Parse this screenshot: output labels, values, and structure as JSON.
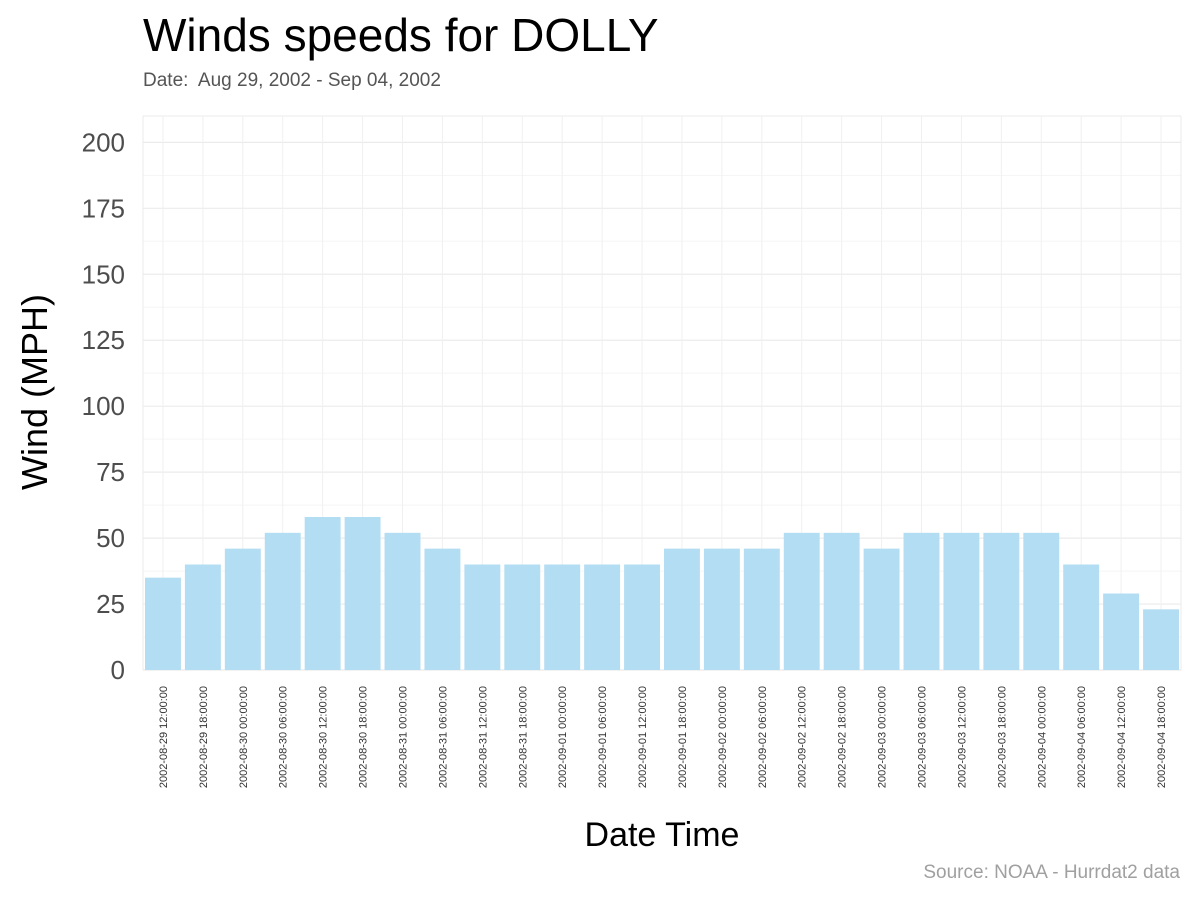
{
  "chart_data": {
    "type": "bar",
    "title": "Winds speeds for DOLLY",
    "subtitle": "Date:  Aug 29, 2002 - Sep 04, 2002",
    "caption": "Source: NOAA - Hurrdat2 data",
    "xlabel": "Date Time",
    "ylabel": "Wind (MPH)",
    "ylim": [
      0,
      210
    ],
    "yticks": [
      0,
      25,
      50,
      75,
      100,
      125,
      150,
      175,
      200
    ],
    "grid": true,
    "legend": "none",
    "categories": [
      "2002-08-29 12:00:00",
      "2002-08-29 18:00:00",
      "2002-08-30 00:00:00",
      "2002-08-30 06:00:00",
      "2002-08-30 12:00:00",
      "2002-08-30 18:00:00",
      "2002-08-31 00:00:00",
      "2002-08-31 06:00:00",
      "2002-08-31 12:00:00",
      "2002-08-31 18:00:00",
      "2002-09-01 00:00:00",
      "2002-09-01 06:00:00",
      "2002-09-01 12:00:00",
      "2002-09-01 18:00:00",
      "2002-09-02 00:00:00",
      "2002-09-02 06:00:00",
      "2002-09-02 12:00:00",
      "2002-09-02 18:00:00",
      "2002-09-03 00:00:00",
      "2002-09-03 06:00:00",
      "2002-09-03 12:00:00",
      "2002-09-03 18:00:00",
      "2002-09-04 00:00:00",
      "2002-09-04 06:00:00",
      "2002-09-04 12:00:00",
      "2002-09-04 18:00:00"
    ],
    "values": [
      35,
      40,
      46,
      52,
      58,
      58,
      52,
      46,
      40,
      40,
      40,
      40,
      40,
      46,
      46,
      46,
      52,
      52,
      46,
      52,
      52,
      52,
      52,
      40,
      29,
      23
    ],
    "colors": {
      "bar": "#b3ddf2",
      "grid": "#ebebeb",
      "axis_text": "#4d4d4d",
      "tick_label": "#333333"
    }
  }
}
